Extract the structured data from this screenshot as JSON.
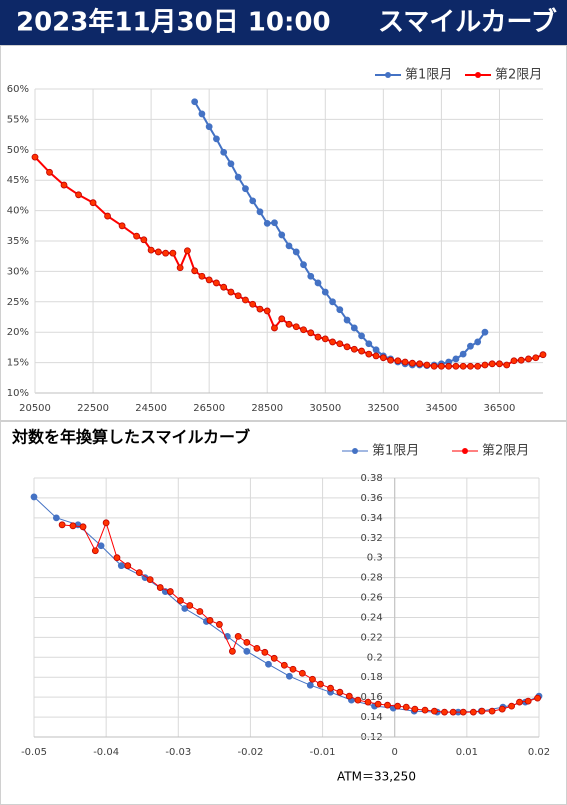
{
  "header": {
    "date": "2023年11月30日 10:00",
    "title": "スマイルカーブ"
  },
  "chart_data": [
    {
      "type": "line",
      "legend": "top-right",
      "grid": true,
      "xlim": [
        20500,
        38000
      ],
      "xticks": [
        20500,
        22500,
        24500,
        26500,
        28500,
        30500,
        32500,
        34500,
        36500
      ],
      "ylim": [
        10,
        60
      ],
      "yticks": [
        {
          "value": 10,
          "label": "10%"
        },
        {
          "value": 15,
          "label": "15%"
        },
        {
          "value": 20,
          "label": "20%"
        },
        {
          "value": 25,
          "label": "25%"
        },
        {
          "value": 30,
          "label": "30%"
        },
        {
          "value": 35,
          "label": "35%"
        },
        {
          "value": 40,
          "label": "40%"
        },
        {
          "value": 45,
          "label": "45%"
        },
        {
          "value": 50,
          "label": "50%"
        },
        {
          "value": 55,
          "label": "55%"
        },
        {
          "value": 60,
          "label": "60%"
        }
      ],
      "series": [
        {
          "name": "第1限月",
          "color": "#4472c4",
          "x": [
            26000,
            26250,
            26500,
            26750,
            27000,
            27250,
            27500,
            27750,
            28000,
            28250,
            28500,
            28750,
            29000,
            29250,
            29500,
            29750,
            30000,
            30250,
            30500,
            30750,
            31000,
            31250,
            31500,
            31750,
            32000,
            32250,
            32500,
            32750,
            33000,
            33250,
            33500,
            33750,
            34000,
            34250,
            34500,
            34750,
            35000,
            35250,
            35500,
            35750,
            36000
          ],
          "values": [
            57.9,
            55.9,
            53.8,
            51.8,
            49.6,
            47.7,
            45.5,
            43.6,
            41.6,
            39.8,
            37.9,
            38.0,
            36.0,
            34.2,
            33.2,
            31.1,
            29.2,
            28.1,
            26.6,
            25.0,
            23.7,
            22.0,
            20.7,
            19.4,
            18.1,
            17.1,
            16.1,
            15.6,
            15.1,
            14.8,
            14.6,
            14.6,
            14.5,
            14.6,
            14.8,
            15.1,
            15.6,
            16.4,
            17.7,
            18.4,
            20.0
          ]
        },
        {
          "name": "第2限月",
          "color": "#ff0000",
          "x": [
            20500,
            21000,
            21500,
            22000,
            22500,
            23000,
            23500,
            24000,
            24250,
            24500,
            24750,
            25000,
            25250,
            25500,
            25750,
            26000,
            26250,
            26500,
            26750,
            27000,
            27250,
            27500,
            27750,
            28000,
            28250,
            28500,
            28750,
            29000,
            29250,
            29500,
            29750,
            30000,
            30250,
            30500,
            30750,
            31000,
            31250,
            31500,
            31750,
            32000,
            32250,
            32500,
            32750,
            33000,
            33250,
            33500,
            33750,
            34000,
            34250,
            34500,
            34750,
            35000,
            35250,
            35500,
            35750,
            36000,
            36250,
            36500,
            36750,
            37000,
            37250,
            37500,
            37750,
            38000
          ],
          "values": [
            48.8,
            46.3,
            44.2,
            42.6,
            41.3,
            39.1,
            37.5,
            35.8,
            35.2,
            33.5,
            33.2,
            33.0,
            33.0,
            30.6,
            33.4,
            30.1,
            29.2,
            28.6,
            28.1,
            27.4,
            26.6,
            26.0,
            25.3,
            24.6,
            23.8,
            23.5,
            20.7,
            22.2,
            21.3,
            20.9,
            20.4,
            19.9,
            19.2,
            18.9,
            18.4,
            18.1,
            17.6,
            17.2,
            16.9,
            16.4,
            16.1,
            15.8,
            15.4,
            15.3,
            15.1,
            14.9,
            14.8,
            14.6,
            14.4,
            14.4,
            14.4,
            14.4,
            14.4,
            14.4,
            14.4,
            14.6,
            14.8,
            14.8,
            14.6,
            15.3,
            15.4,
            15.6,
            15.8,
            16.3
          ]
        }
      ]
    },
    {
      "type": "scatter",
      "title": "対数を年換算したスマイルカーブ",
      "annotation": "ATM＝33,250",
      "legend": "top-right",
      "grid": true,
      "xlim": [
        -0.05,
        0.02
      ],
      "xticks": [
        -0.05,
        -0.04,
        -0.03,
        -0.02,
        -0.01,
        0,
        0.01,
        0.02
      ],
      "ylim": [
        0.12,
        0.38
      ],
      "yticks": [
        0.12,
        0.14,
        0.16,
        0.18,
        0.2,
        0.22,
        0.24,
        0.26,
        0.28,
        0.3,
        0.32,
        0.34,
        0.36,
        0.38
      ],
      "series": [
        {
          "name": "第1限月",
          "color": "#4472c4",
          "x": [
            -0.05,
            -0.0469,
            -0.0439,
            -0.0407,
            -0.0379,
            -0.0346,
            -0.0318,
            -0.0291,
            -0.0261,
            -0.0232,
            -0.0205,
            -0.0175,
            -0.0146,
            -0.0117,
            -0.0089,
            -0.006,
            -0.0028,
            -0.0002,
            0.0027,
            0.0059,
            0.0088,
            0.012,
            0.015,
            0.0181,
            0.02
          ],
          "values": [
            0.361,
            0.34,
            0.333,
            0.312,
            0.292,
            0.28,
            0.266,
            0.249,
            0.236,
            0.221,
            0.206,
            0.193,
            0.181,
            0.172,
            0.165,
            0.157,
            0.151,
            0.149,
            0.146,
            0.145,
            0.145,
            0.146,
            0.15,
            0.155,
            0.161
          ]
        },
        {
          "name": "第2限月",
          "color": "#ff0000",
          "x": [
            -0.0461,
            -0.0446,
            -0.0432,
            -0.0415,
            -0.04,
            -0.0385,
            -0.037,
            -0.0354,
            -0.0339,
            -0.0325,
            -0.0311,
            -0.0297,
            -0.0284,
            -0.027,
            -0.0256,
            -0.0243,
            -0.0225,
            -0.0217,
            -0.0205,
            -0.0191,
            -0.018,
            -0.0167,
            -0.0153,
            -0.0141,
            -0.0128,
            -0.0114,
            -0.0103,
            -0.0089,
            -0.0076,
            -0.0063,
            -0.0051,
            -0.0037,
            -0.0023,
            -0.001,
            0.0004,
            0.0016,
            0.0028,
            0.0042,
            0.0055,
            0.0069,
            0.0081,
            0.0095,
            0.0109,
            0.0121,
            0.0135,
            0.0149,
            0.0162,
            0.0173,
            0.0185,
            0.0198
          ],
          "values": [
            0.333,
            0.332,
            0.331,
            0.307,
            0.335,
            0.3,
            0.292,
            0.285,
            0.278,
            0.27,
            0.266,
            0.257,
            0.252,
            0.246,
            0.237,
            0.233,
            0.206,
            0.221,
            0.215,
            0.209,
            0.205,
            0.199,
            0.192,
            0.188,
            0.184,
            0.178,
            0.173,
            0.169,
            0.165,
            0.161,
            0.157,
            0.155,
            0.153,
            0.152,
            0.151,
            0.15,
            0.148,
            0.147,
            0.146,
            0.145,
            0.145,
            0.145,
            0.145,
            0.146,
            0.146,
            0.148,
            0.151,
            0.155,
            0.156,
            0.159
          ]
        }
      ]
    }
  ]
}
